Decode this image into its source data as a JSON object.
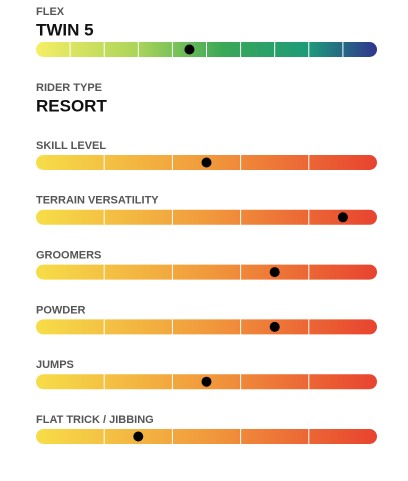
{
  "flex": {
    "label": "FLEX",
    "value": "TWIN 5",
    "rating": 4.5,
    "range": [
      0,
      10
    ]
  },
  "rider_type": {
    "label": "RIDER TYPE",
    "value": "RESORT"
  },
  "ratings": [
    {
      "label": "SKILL LEVEL",
      "value": 2.5,
      "range": [
        0,
        5
      ]
    },
    {
      "label": "TERRAIN VERSATILITY",
      "value": 4.5,
      "range": [
        0,
        5
      ]
    },
    {
      "label": "GROOMERS",
      "value": 3.5,
      "range": [
        0,
        5
      ]
    },
    {
      "label": "POWDER",
      "value": 3.5,
      "range": [
        0,
        5
      ]
    },
    {
      "label": "JUMPS",
      "value": 2.5,
      "range": [
        0,
        5
      ]
    },
    {
      "label": "FLAT TRICK / JIBBING",
      "value": 1.5,
      "range": [
        0,
        5
      ]
    }
  ]
}
